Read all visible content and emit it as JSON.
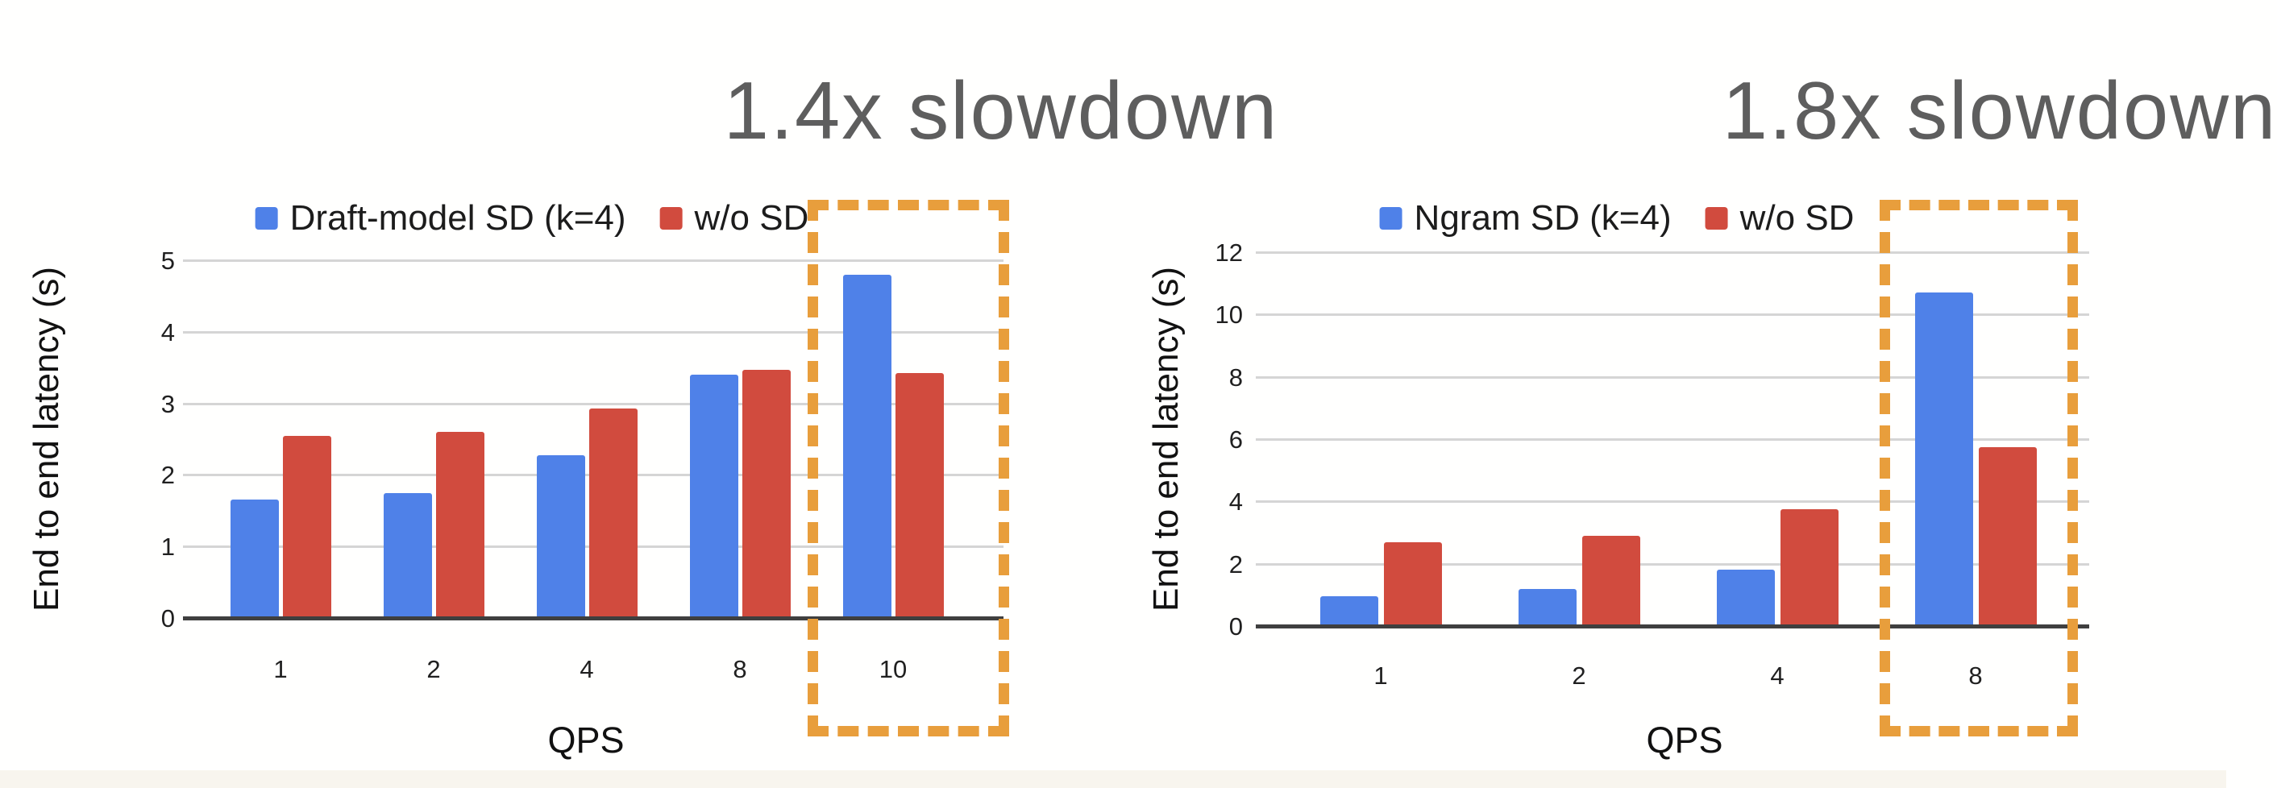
{
  "background": {
    "canvas_color": "#FFFFFE",
    "bottom_strip_color": "#F8F5EE"
  },
  "colors": {
    "series_sd_blue": "#4F81E8",
    "series_baseline_red": "#D14B3E",
    "highlight_box_orange": "#E89E3C",
    "annotation_gray": "#5E5E5E",
    "gridline_gray": "#D5D5D5",
    "axis_line_dark": "#3F3F3F",
    "label_black": "#1C1C1C"
  },
  "chart_data": [
    {
      "type": "bar",
      "title": "",
      "annotation": "1.4x slowdown",
      "categories": [
        "1",
        "2",
        "4",
        "8",
        "10"
      ],
      "series": [
        {
          "name": "Draft-model SD (k=4)",
          "color_key": "series_sd_blue",
          "values": [
            1.65,
            1.75,
            2.27,
            3.4,
            4.8
          ]
        },
        {
          "name": "w/o SD",
          "color_key": "series_baseline_red",
          "values": [
            2.55,
            2.6,
            2.93,
            3.47,
            3.42
          ]
        }
      ],
      "xlabel": "QPS",
      "ylabel": "End to end latency (s)",
      "ylim": [
        0,
        5
      ],
      "yticks": [
        0,
        1,
        2,
        3,
        4,
        5
      ],
      "grid": true,
      "legend_position": "top",
      "highlighted_category": "10",
      "highlight_ratio_sd_over_baseline": "4.80 / 3.42 = 1.4x"
    },
    {
      "type": "bar",
      "title": "",
      "annotation": "1.8x slowdown",
      "categories": [
        "1",
        "2",
        "4",
        "8"
      ],
      "series": [
        {
          "name": "Ngram SD (k=4)",
          "color_key": "series_sd_blue",
          "values": [
            0.95,
            1.2,
            1.8,
            10.7
          ]
        },
        {
          "name": "w/o SD",
          "color_key": "series_baseline_red",
          "values": [
            2.7,
            2.9,
            3.75,
            5.75
          ]
        }
      ],
      "xlabel": "QPS",
      "ylabel": "End to end latency (s)",
      "ylim": [
        0,
        12
      ],
      "yticks": [
        0,
        2,
        4,
        6,
        8,
        10,
        12
      ],
      "grid": true,
      "legend_position": "top",
      "highlighted_category": "8",
      "highlight_ratio_sd_over_baseline": "10.70 / 5.75 = 1.8x"
    }
  ]
}
